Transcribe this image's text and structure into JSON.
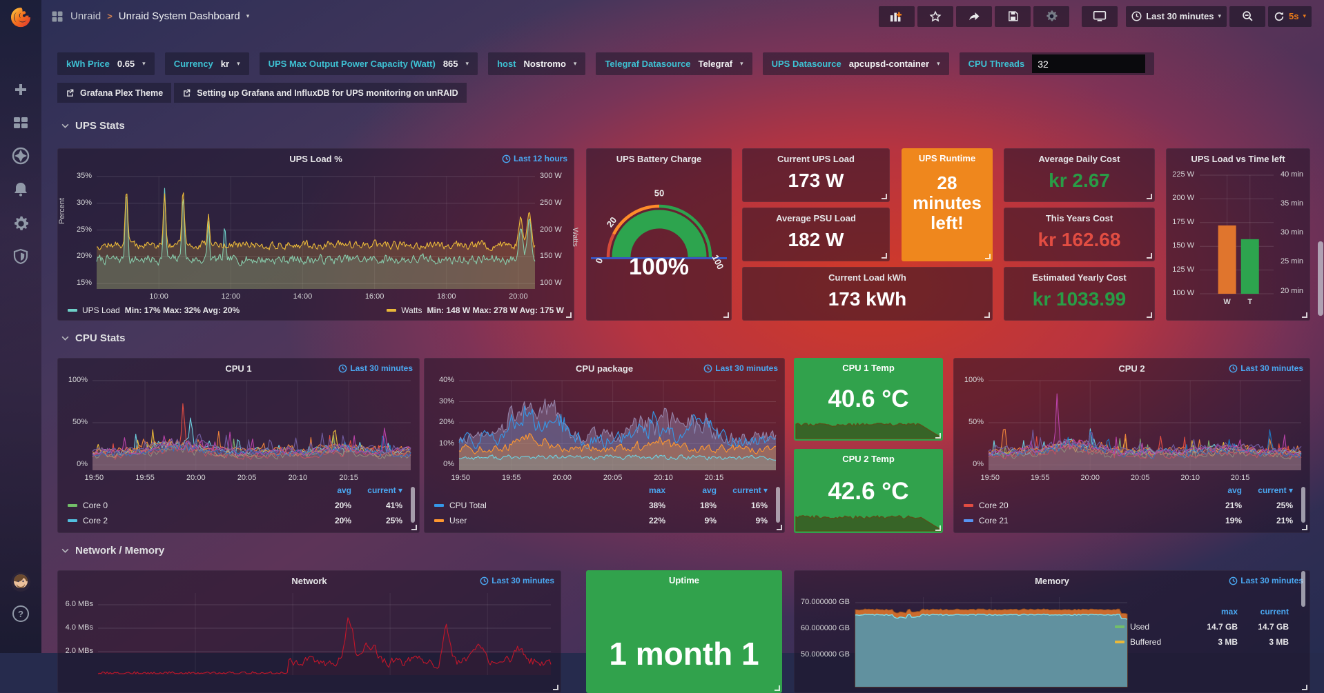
{
  "nav": {
    "folder": "Unraid",
    "title": "Unraid System Dashboard",
    "time_range": "Last 30 minutes",
    "refresh": "5s"
  },
  "variables": [
    {
      "label": "kWh Price",
      "value": "0.65"
    },
    {
      "label": "Currency",
      "value": "kr"
    },
    {
      "label": "UPS Max Output Power Capacity (Watt)",
      "value": "865"
    },
    {
      "label": "host",
      "value": "Nostromo"
    },
    {
      "label": "Telegraf Datasource",
      "value": "Telegraf"
    },
    {
      "label": "UPS Datasource",
      "value": "apcupsd-container"
    },
    {
      "label": "CPU Threads",
      "value": "32"
    }
  ],
  "links": [
    {
      "label": "Grafana Plex Theme"
    },
    {
      "label": "Setting up Grafana and InfluxDB for UPS monitoring on unRAID"
    }
  ],
  "sections": [
    {
      "title": "UPS Stats"
    },
    {
      "title": "CPU Stats"
    },
    {
      "title": "Network / Memory"
    }
  ],
  "stats": {
    "current_ups_load": {
      "title": "Current UPS Load",
      "value": "173 W"
    },
    "average_psu_load": {
      "title": "Average PSU Load",
      "value": "182 W"
    },
    "current_load_kwh": {
      "title": "Current Load kWh",
      "value": "173 kWh"
    },
    "ups_runtime": {
      "title": "UPS Runtime",
      "value": "28 minutes left!",
      "bg": "#ef871d"
    },
    "avg_daily_cost": {
      "title": "Average Daily Cost",
      "value": "kr  2.67",
      "color": "#299c46"
    },
    "this_years_cost": {
      "title": "This Years Cost",
      "value": "kr  162.68",
      "color": "#e24d42"
    },
    "est_yearly_cost": {
      "title": "Estimated Yearly Cost",
      "value": "kr  1033.99",
      "color": "#299c46"
    },
    "cpu1_temp": {
      "title": "CPU 1 Temp",
      "value": "40.6 °C",
      "bg": "#31a24c"
    },
    "cpu2_temp": {
      "title": "CPU 2 Temp",
      "value": "42.6 °C",
      "bg": "#31a24c"
    },
    "uptime": {
      "title": "Uptime",
      "value": "1 month 1",
      "bg": "#31a24c"
    }
  },
  "chart_data": [
    {
      "id": "ups_load",
      "type": "line",
      "title": "UPS Load %",
      "time_range": "Last 12 hours",
      "ylabel_left": "Percent",
      "ylabel_right": "Watts",
      "yticks_left": [
        "35%",
        "30%",
        "25%",
        "20%",
        "15%"
      ],
      "yticks_right": [
        "300 W",
        "250 W",
        "200 W",
        "150 W",
        "100 W"
      ],
      "yrows": [
        35,
        30,
        25,
        20,
        15
      ],
      "ymin": 14,
      "ymax": 35,
      "xticks": [
        "10:00",
        "12:00",
        "14:00",
        "16:00",
        "18:00",
        "20:00"
      ],
      "xfr": [
        0.142,
        0.306,
        0.47,
        0.634,
        0.798,
        0.962
      ],
      "series": [
        {
          "name": "UPS Load",
          "color": "#6ed0c8",
          "fill": 0.2,
          "seed": 7,
          "n": 420,
          "base": 19.5,
          "amp": 1.5,
          "stats": "Min: 17%  Max: 32%  Avg: 20%",
          "spikes": [
            {
              "x": 0.068,
              "h": 13,
              "w": 0.004
            },
            {
              "x": 0.155,
              "h": 12.6,
              "w": 0.004
            },
            {
              "x": 0.197,
              "h": 12,
              "w": 0.004
            },
            {
              "x": 0.255,
              "h": 7,
              "w": 0.003
            },
            {
              "x": 0.292,
              "h": 5.5,
              "w": 0.003
            },
            {
              "x": 0.968,
              "h": 6.5,
              "w": 0.006
            },
            {
              "x": 0.987,
              "h": 8,
              "w": 0.006
            }
          ]
        },
        {
          "name": "Watts",
          "color": "#eab839",
          "fill": 0.2,
          "seed": 12,
          "n": 420,
          "base": 22.2,
          "amp": 1.3,
          "stats": "Min: 148 W  Max: 278 W  Avg: 175 W",
          "spikes": [
            {
              "x": 0.068,
              "h": 10.6,
              "w": 0.004
            },
            {
              "x": 0.155,
              "h": 10.2,
              "w": 0.004
            },
            {
              "x": 0.197,
              "h": 9.6,
              "w": 0.004
            },
            {
              "x": 0.255,
              "h": 5,
              "w": 0.003
            },
            {
              "x": 0.968,
              "h": 5.5,
              "w": 0.006
            },
            {
              "x": 0.987,
              "h": 6.5,
              "w": 0.006
            }
          ]
        }
      ]
    },
    {
      "id": "battery",
      "type": "gauge",
      "title": "UPS Battery Charge",
      "value": 100,
      "display": "100%",
      "min": 0,
      "max": 100,
      "labels": [
        "0",
        "20",
        "50",
        "100"
      ],
      "thresholds": [
        {
          "to": 15,
          "color": "#d44a3a"
        },
        {
          "to": 50,
          "color": "#ff8c2a"
        },
        {
          "to": 100,
          "color": "#2da44e"
        }
      ]
    },
    {
      "id": "ups_bar",
      "type": "bar",
      "title": "UPS Load vs Time left",
      "yticks_left": [
        "225 W",
        "200 W",
        "175 W",
        "150 W",
        "125 W",
        "100 W"
      ],
      "yticks_right": [
        "40 min",
        "35 min",
        "30 min",
        "25 min",
        "20 min"
      ],
      "bars": [
        {
          "label": "W",
          "color": "#e0752d",
          "value": "172 W",
          "frac": 0.576
        },
        {
          "label": "T",
          "color": "#2da44e",
          "value": "28 min",
          "frac": 0.46
        }
      ]
    },
    {
      "id": "cpu1",
      "type": "line",
      "title": "CPU 1",
      "time_range": "Last 30 minutes",
      "yticks_left": [
        "100%",
        "50%",
        "0%"
      ],
      "yrows": [
        100,
        50,
        0
      ],
      "ymin": -6.5,
      "ymax": 100,
      "xticks": [
        "19:50",
        "19:55",
        "20:00",
        "20:05",
        "20:10",
        "20:15"
      ],
      "xfr": [
        0.005,
        0.165,
        0.325,
        0.485,
        0.645,
        0.805
      ],
      "legend_cols": [
        "avg",
        "current"
      ],
      "sort_col": "current",
      "legend_rows": [
        {
          "name": "Core 0",
          "color": "#73bf69",
          "values": [
            "20%",
            "41%"
          ]
        },
        {
          "name": "Core 2",
          "color": "#52c0e0",
          "values": [
            "20%",
            "25%"
          ]
        }
      ]
    },
    {
      "id": "cpu_pkg",
      "type": "line",
      "title": "CPU package",
      "time_range": "Last 30 minutes",
      "yticks_left": [
        "40%",
        "30%",
        "20%",
        "10%",
        "0%"
      ],
      "yrows": [
        40,
        30,
        20,
        10,
        0
      ],
      "ymin": -2.6,
      "ymax": 40,
      "xticks": [
        "19:50",
        "19:55",
        "20:00",
        "20:05",
        "20:10",
        "20:15"
      ],
      "xfr": [
        0.005,
        0.165,
        0.325,
        0.485,
        0.645,
        0.805
      ],
      "legend_cols": [
        "max",
        "avg",
        "current"
      ],
      "sort_col": "current",
      "legend_rows": [
        {
          "name": "CPU Total",
          "color": "#3598e8",
          "values": [
            "38%",
            "18%",
            "16%"
          ]
        },
        {
          "name": "User",
          "color": "#ff9830",
          "values": [
            "22%",
            "9%",
            "9%"
          ]
        }
      ]
    },
    {
      "id": "cpu2",
      "type": "line",
      "title": "CPU 2",
      "time_range": "Last 30 minutes",
      "yticks_left": [
        "100%",
        "50%",
        "0%"
      ],
      "yrows": [
        100,
        50,
        0
      ],
      "ymin": -6.5,
      "ymax": 100,
      "xticks": [
        "19:50",
        "19:55",
        "20:00",
        "20:05",
        "20:10",
        "20:15"
      ],
      "xfr": [
        0.005,
        0.165,
        0.325,
        0.485,
        0.645,
        0.805
      ],
      "legend_cols": [
        "avg",
        "current"
      ],
      "sort_col": "current",
      "legend_rows": [
        {
          "name": "Core 20",
          "color": "#e24d42",
          "values": [
            "21%",
            "25%"
          ]
        },
        {
          "name": "Core 21",
          "color": "#5794f2",
          "values": [
            "19%",
            "21%"
          ]
        }
      ]
    },
    {
      "id": "network",
      "type": "line",
      "title": "Network",
      "time_range": "Last 30 minutes",
      "yticks_left": [
        "6.0 MBs",
        "4.0 MBs",
        "2.0 MBs"
      ],
      "yrows": [
        6,
        4,
        2
      ],
      "ymin": 0,
      "ymax": 7,
      "xfr": [
        0.215,
        0.43,
        0.645,
        0.86
      ],
      "series": [
        {
          "name": "recv",
          "color": "#c4162a",
          "fill": 0.08,
          "seed": 21,
          "n": 300,
          "base": 1.1,
          "amp": 0.75,
          "gate": 0.42,
          "gateVal": 0.05,
          "spikes": [
            {
              "x": 0.555,
              "h": 3.6,
              "w": 0.012
            },
            {
              "x": 0.6,
              "h": 1.6,
              "w": 0.02
            },
            {
              "x": 0.77,
              "h": 2.6,
              "w": 0.01
            },
            {
              "x": 0.84,
              "h": 1.2,
              "w": 0.02
            },
            {
              "x": 0.93,
              "h": 1.0,
              "w": 0.02
            }
          ]
        }
      ]
    },
    {
      "id": "memory",
      "type": "area-stack",
      "title": "Memory",
      "time_range": "Last 30 minutes",
      "yticks_left": [
        "70.000000 GB",
        "60.000000 GB",
        "50.000000 GB"
      ],
      "yrows": [
        70,
        60,
        50
      ],
      "used_gb": 65.4,
      "buffered_top_gb": 67.4,
      "legend_cols": [
        "max",
        "current"
      ],
      "legend_rows": [
        {
          "name": "Used",
          "color": "#73bf69",
          "values": [
            "14.7 GB",
            "14.7 GB"
          ]
        },
        {
          "name": "Buffered",
          "color": "#eab839",
          "values": [
            "3 MB",
            "3 MB"
          ]
        }
      ]
    }
  ]
}
